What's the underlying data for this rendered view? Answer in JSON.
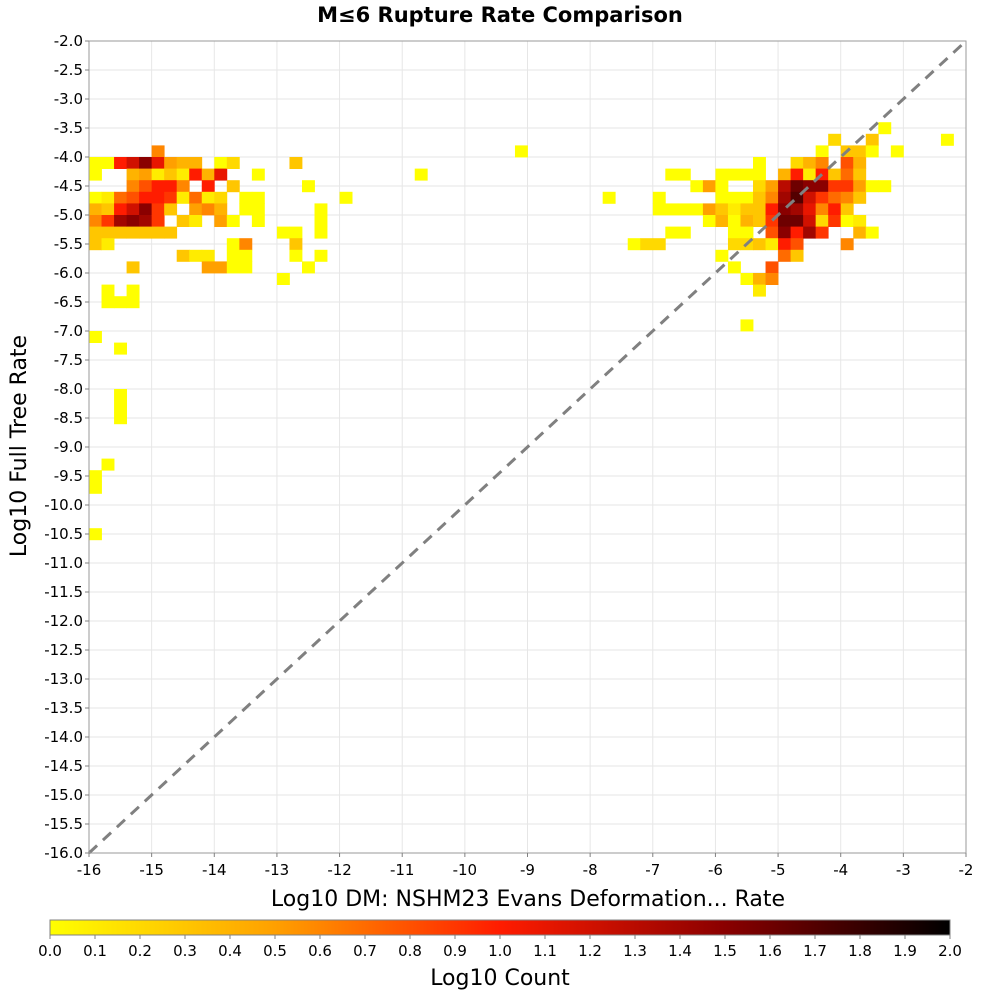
{
  "chart_data": {
    "type": "heatmap",
    "title": "M≤6 Rupture Rate Comparison",
    "xlabel": "Log10 DM: NSHM23 Evans Deformation... Rate",
    "ylabel": "Log10 Full Tree Rate",
    "xlim": [
      -16,
      -2
    ],
    "ylim": [
      -16,
      -2
    ],
    "x_ticks": [
      "-16",
      "-15",
      "-14",
      "-13",
      "-12",
      "-11",
      "-10",
      "-9",
      "-8",
      "-7",
      "-6",
      "-5",
      "-4",
      "-3",
      "-2"
    ],
    "y_ticks": [
      "-2.0",
      "-2.5",
      "-3.0",
      "-3.5",
      "-4.0",
      "-4.5",
      "-5.0",
      "-5.5",
      "-6.0",
      "-6.5",
      "-7.0",
      "-7.5",
      "-8.0",
      "-8.5",
      "-9.0",
      "-9.5",
      "-10.0",
      "-10.5",
      "-11.0",
      "-11.5",
      "-12.0",
      "-12.5",
      "-13.0",
      "-13.5",
      "-14.0",
      "-14.5",
      "-15.0",
      "-15.5",
      "-16.0"
    ],
    "grid": true,
    "reference_line": "y = x (dashed gray)",
    "bin_size": 0.2,
    "colorbar": {
      "label": "Log10 Count",
      "min": 0.0,
      "max": 2.0,
      "ticks": [
        "0.0",
        "0.1",
        "0.2",
        "0.3",
        "0.4",
        "0.5",
        "0.6",
        "0.7",
        "0.8",
        "0.9",
        "1.0",
        "1.1",
        "1.2",
        "1.3",
        "1.4",
        "1.5",
        "1.6",
        "1.7",
        "1.8",
        "1.9",
        "2.0"
      ],
      "colors": [
        "#ffff00",
        "#ffa000",
        "#ff1c00",
        "#8a0000",
        "#000000"
      ]
    },
    "cells": [
      [
        -15.9,
        -4.1,
        0.0
      ],
      [
        -15.9,
        -4.3,
        0.0
      ],
      [
        -15.9,
        -4.7,
        0.0
      ],
      [
        -15.9,
        -4.9,
        0.4
      ],
      [
        -15.9,
        -5.1,
        0.6
      ],
      [
        -15.9,
        -5.3,
        0.3
      ],
      [
        -15.9,
        -5.5,
        0.3
      ],
      [
        -15.7,
        -4.1,
        0.0
      ],
      [
        -15.7,
        -4.7,
        0.1
      ],
      [
        -15.7,
        -4.9,
        0.3
      ],
      [
        -15.7,
        -5.1,
        0.9
      ],
      [
        -15.7,
        -5.3,
        0.3
      ],
      [
        -15.7,
        -5.5,
        0.1
      ],
      [
        -15.5,
        -4.1,
        1.0
      ],
      [
        -15.5,
        -4.7,
        0.7
      ],
      [
        -15.5,
        -4.9,
        1.0
      ],
      [
        -15.5,
        -5.1,
        1.4
      ],
      [
        -15.5,
        -5.3,
        0.3
      ],
      [
        -15.3,
        -4.1,
        1.2
      ],
      [
        -15.3,
        -4.3,
        0.4
      ],
      [
        -15.3,
        -4.5,
        0.6
      ],
      [
        -15.3,
        -4.7,
        0.8
      ],
      [
        -15.3,
        -4.9,
        1.2
      ],
      [
        -15.3,
        -5.1,
        1.5
      ],
      [
        -15.3,
        -5.3,
        0.3
      ],
      [
        -15.1,
        -4.1,
        1.5
      ],
      [
        -15.1,
        -4.3,
        0.5
      ],
      [
        -15.1,
        -4.5,
        0.8
      ],
      [
        -15.1,
        -4.7,
        1.0
      ],
      [
        -15.1,
        -4.9,
        1.5
      ],
      [
        -15.1,
        -5.1,
        1.4
      ],
      [
        -15.1,
        -5.3,
        0.3
      ],
      [
        -14.9,
        -3.9,
        0.6
      ],
      [
        -14.9,
        -4.1,
        1.1
      ],
      [
        -14.9,
        -4.3,
        0.1
      ],
      [
        -14.9,
        -4.5,
        1.0
      ],
      [
        -14.9,
        -4.7,
        1.0
      ],
      [
        -14.9,
        -4.9,
        0.9
      ],
      [
        -14.9,
        -5.1,
        0.9
      ],
      [
        -14.9,
        -5.3,
        0.3
      ],
      [
        -14.7,
        -4.1,
        0.5
      ],
      [
        -14.7,
        -4.3,
        0.3
      ],
      [
        -14.7,
        -4.5,
        1.0
      ],
      [
        -14.7,
        -4.7,
        0.9
      ],
      [
        -14.7,
        -4.9,
        0.3
      ],
      [
        -14.7,
        -5.3,
        0.3
      ],
      [
        -14.5,
        -4.1,
        0.4
      ],
      [
        -14.5,
        -4.3,
        0.1
      ],
      [
        -14.5,
        -4.5,
        0.6
      ],
      [
        -14.5,
        -4.7,
        0.1
      ],
      [
        -14.5,
        -5.1,
        0.3
      ],
      [
        -14.5,
        -5.7,
        0.3
      ],
      [
        -14.3,
        -4.1,
        0.4
      ],
      [
        -14.3,
        -4.3,
        1.0
      ],
      [
        -14.3,
        -4.7,
        0.7
      ],
      [
        -14.3,
        -4.9,
        0.5
      ],
      [
        -14.3,
        -5.1,
        0.1
      ],
      [
        -14.3,
        -5.7,
        0.1
      ],
      [
        -14.1,
        -4.3,
        0.4
      ],
      [
        -14.1,
        -4.5,
        1.0
      ],
      [
        -14.1,
        -4.7,
        0.1
      ],
      [
        -14.1,
        -4.9,
        0.6
      ],
      [
        -14.1,
        -5.7,
        0.1
      ],
      [
        -14.1,
        -5.9,
        0.5
      ],
      [
        -13.9,
        -4.1,
        0.0
      ],
      [
        -13.9,
        -4.3,
        1.1
      ],
      [
        -13.9,
        -4.7,
        0.2
      ],
      [
        -13.9,
        -4.9,
        0.4
      ],
      [
        -13.9,
        -5.1,
        0.5
      ],
      [
        -13.9,
        -5.9,
        0.5
      ],
      [
        -13.7,
        -4.1,
        0.2
      ],
      [
        -13.7,
        -4.5,
        0.3
      ],
      [
        -13.7,
        -5.1,
        0.0
      ],
      [
        -13.7,
        -5.5,
        0.0
      ],
      [
        -13.7,
        -5.7,
        0.0
      ],
      [
        -13.7,
        -5.9,
        0.0
      ],
      [
        -13.5,
        -4.7,
        0.0
      ],
      [
        -13.5,
        -4.9,
        0.0
      ],
      [
        -13.5,
        -5.5,
        0.6
      ],
      [
        -13.5,
        -5.7,
        0.0
      ],
      [
        -13.5,
        -5.9,
        0.0
      ],
      [
        -13.3,
        -4.3,
        0.0
      ],
      [
        -13.3,
        -4.7,
        0.0
      ],
      [
        -13.3,
        -4.9,
        0.0
      ],
      [
        -13.3,
        -5.1,
        0.0
      ],
      [
        -12.9,
        -5.3,
        0.0
      ],
      [
        -12.9,
        -6.1,
        0.0
      ],
      [
        -12.7,
        -4.1,
        0.3
      ],
      [
        -12.7,
        -5.3,
        0.0
      ],
      [
        -12.7,
        -5.5,
        0.3
      ],
      [
        -12.7,
        -5.7,
        0.0
      ],
      [
        -12.5,
        -4.5,
        0.0
      ],
      [
        -12.5,
        -5.9,
        0.0
      ],
      [
        -12.3,
        -4.9,
        0.0
      ],
      [
        -12.3,
        -5.1,
        0.0
      ],
      [
        -12.3,
        -5.3,
        0.0
      ],
      [
        -12.3,
        -5.7,
        0.0
      ],
      [
        -11.9,
        -4.7,
        0.0
      ],
      [
        -10.7,
        -4.3,
        0.0
      ],
      [
        -9.1,
        -3.9,
        0.0
      ],
      [
        -7.7,
        -4.7,
        0.0
      ],
      [
        -7.3,
        -5.5,
        0.0
      ],
      [
        -7.1,
        -5.5,
        0.2
      ],
      [
        -6.9,
        -4.7,
        0.0
      ],
      [
        -6.9,
        -4.9,
        0.0
      ],
      [
        -6.9,
        -5.5,
        0.2
      ],
      [
        -6.7,
        -4.3,
        0.0
      ],
      [
        -6.7,
        -4.9,
        0.0
      ],
      [
        -6.7,
        -5.3,
        0.0
      ],
      [
        -6.5,
        -4.3,
        0.0
      ],
      [
        -6.5,
        -4.9,
        0.0
      ],
      [
        -6.5,
        -5.3,
        0.0
      ],
      [
        -6.3,
        -4.5,
        0.0
      ],
      [
        -6.3,
        -4.9,
        0.0
      ],
      [
        -6.1,
        -4.5,
        0.5
      ],
      [
        -6.1,
        -4.9,
        0.5
      ],
      [
        -6.1,
        -5.1,
        0.0
      ],
      [
        -5.9,
        -4.3,
        0.0
      ],
      [
        -5.9,
        -4.5,
        0.0
      ],
      [
        -5.9,
        -4.7,
        0.0
      ],
      [
        -5.9,
        -4.9,
        0.3
      ],
      [
        -5.9,
        -5.1,
        0.4
      ],
      [
        -5.9,
        -5.7,
        0.0
      ],
      [
        -5.7,
        -4.3,
        0.0
      ],
      [
        -5.7,
        -4.7,
        0.0
      ],
      [
        -5.7,
        -4.9,
        0.1
      ],
      [
        -5.7,
        -5.1,
        0.0
      ],
      [
        -5.7,
        -5.3,
        0.0
      ],
      [
        -5.7,
        -5.5,
        0.2
      ],
      [
        -5.7,
        -5.9,
        0.0
      ],
      [
        -5.5,
        -4.3,
        0.0
      ],
      [
        -5.5,
        -4.7,
        0.0
      ],
      [
        -5.5,
        -4.9,
        0.3
      ],
      [
        -5.5,
        -5.1,
        0.4
      ],
      [
        -5.5,
        -5.3,
        0.0
      ],
      [
        -5.5,
        -5.5,
        0.2
      ],
      [
        -5.5,
        -6.1,
        0.0
      ],
      [
        -5.5,
        -6.9,
        0.0
      ],
      [
        -5.3,
        -4.1,
        0.0
      ],
      [
        -5.3,
        -4.3,
        0.0
      ],
      [
        -5.3,
        -4.5,
        0.2
      ],
      [
        -5.3,
        -4.7,
        0.3
      ],
      [
        -5.3,
        -4.9,
        0.3
      ],
      [
        -5.3,
        -5.1,
        0.3
      ],
      [
        -5.3,
        -5.5,
        0.3
      ],
      [
        -5.3,
        -6.1,
        0.4
      ],
      [
        -5.3,
        -6.3,
        0.1
      ],
      [
        -5.1,
        -4.5,
        0.5
      ],
      [
        -5.1,
        -4.7,
        0.6
      ],
      [
        -5.1,
        -4.9,
        1.0
      ],
      [
        -5.1,
        -5.1,
        0.9
      ],
      [
        -5.1,
        -5.3,
        0.8
      ],
      [
        -5.1,
        -5.5,
        0.1
      ],
      [
        -5.1,
        -5.9,
        0.8
      ],
      [
        -5.1,
        -6.1,
        0.6
      ],
      [
        -4.9,
        -4.3,
        0.4
      ],
      [
        -4.9,
        -4.5,
        1.3
      ],
      [
        -4.9,
        -4.7,
        1.4
      ],
      [
        -4.9,
        -4.9,
        1.5
      ],
      [
        -4.9,
        -5.1,
        1.6
      ],
      [
        -4.9,
        -5.3,
        1.5
      ],
      [
        -4.9,
        -5.5,
        1.0
      ],
      [
        -4.9,
        -5.7,
        0.7
      ],
      [
        -4.7,
        -4.1,
        0.2
      ],
      [
        -4.7,
        -4.3,
        1.0
      ],
      [
        -4.7,
        -4.5,
        1.6
      ],
      [
        -4.7,
        -4.7,
        1.7
      ],
      [
        -4.7,
        -4.9,
        1.4
      ],
      [
        -4.7,
        -5.1,
        1.6
      ],
      [
        -4.7,
        -5.3,
        1.0
      ],
      [
        -4.7,
        -5.5,
        0.8
      ],
      [
        -4.7,
        -5.7,
        0.3
      ],
      [
        -4.5,
        -4.1,
        0.4
      ],
      [
        -4.5,
        -4.3,
        0.1
      ],
      [
        -4.5,
        -4.5,
        1.5
      ],
      [
        -4.5,
        -4.7,
        1.2
      ],
      [
        -4.5,
        -4.9,
        1.1
      ],
      [
        -4.5,
        -5.1,
        1.2
      ],
      [
        -4.5,
        -5.3,
        1.4
      ],
      [
        -4.3,
        -3.9,
        0.0
      ],
      [
        -4.3,
        -4.1,
        0.6
      ],
      [
        -4.3,
        -4.3,
        1.0
      ],
      [
        -4.3,
        -4.5,
        1.5
      ],
      [
        -4.3,
        -4.7,
        0.9
      ],
      [
        -4.3,
        -4.9,
        0.6
      ],
      [
        -4.3,
        -5.1,
        0.2
      ],
      [
        -4.3,
        -5.3,
        0.9
      ],
      [
        -4.1,
        -3.7,
        0.2
      ],
      [
        -4.1,
        -4.3,
        0.3
      ],
      [
        -4.1,
        -4.5,
        0.9
      ],
      [
        -4.1,
        -4.7,
        0.7
      ],
      [
        -4.1,
        -4.9,
        1.0
      ],
      [
        -4.1,
        -5.1,
        0.9
      ],
      [
        -3.9,
        -3.9,
        0.3
      ],
      [
        -3.9,
        -4.1,
        0.8
      ],
      [
        -3.9,
        -4.3,
        0.7
      ],
      [
        -3.9,
        -4.5,
        0.9
      ],
      [
        -3.9,
        -4.7,
        0.6
      ],
      [
        -3.9,
        -4.9,
        0.3
      ],
      [
        -3.9,
        -5.1,
        0.0
      ],
      [
        -3.9,
        -5.5,
        0.6
      ],
      [
        -3.7,
        -3.9,
        0.3
      ],
      [
        -3.7,
        -4.1,
        0.4
      ],
      [
        -3.7,
        -4.3,
        0.3
      ],
      [
        -3.7,
        -4.5,
        0.5
      ],
      [
        -3.7,
        -4.7,
        0.3
      ],
      [
        -3.7,
        -5.1,
        0.1
      ],
      [
        -3.7,
        -5.3,
        0.4
      ],
      [
        -3.5,
        -3.7,
        0.3
      ],
      [
        -3.5,
        -3.9,
        0.0
      ],
      [
        -3.5,
        -4.5,
        0.0
      ],
      [
        -3.5,
        -5.3,
        0.0
      ],
      [
        -3.3,
        -3.5,
        0.0
      ],
      [
        -3.3,
        -4.5,
        0.0
      ],
      [
        -3.1,
        -3.9,
        0.0
      ],
      [
        -2.3,
        -3.7,
        0.0
      ],
      [
        -15.7,
        -6.3,
        0.0
      ],
      [
        -15.7,
        -6.5,
        0.0
      ],
      [
        -15.5,
        -6.5,
        0.0
      ],
      [
        -15.3,
        -5.9,
        0.3
      ],
      [
        -15.3,
        -6.3,
        0.0
      ],
      [
        -15.3,
        -6.5,
        0.0
      ],
      [
        -15.9,
        -7.1,
        0.0
      ],
      [
        -15.5,
        -7.3,
        0.0
      ],
      [
        -15.5,
        -8.1,
        0.0
      ],
      [
        -15.5,
        -8.3,
        0.0
      ],
      [
        -15.5,
        -8.5,
        0.0
      ],
      [
        -15.7,
        -9.3,
        0.0
      ],
      [
        -15.9,
        -9.5,
        0.0
      ],
      [
        -15.9,
        -9.7,
        0.0
      ],
      [
        -15.9,
        -10.5,
        0.0
      ]
    ]
  }
}
